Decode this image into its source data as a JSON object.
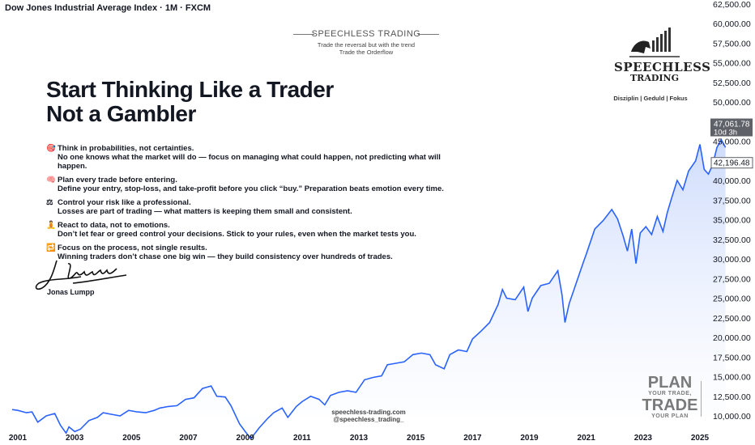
{
  "header": {
    "title": "Dow Jones Industrial Average Index · 1M · FXCM"
  },
  "brand_top": {
    "name": "SPEECHLESS TRADING",
    "tagline_1": "Trade the reversal but with the trend",
    "tagline_2": "Trade the Orderflow"
  },
  "headline": {
    "line1": "Start Thinking Like a Trader",
    "line2": "Not a Gambler"
  },
  "tips": [
    {
      "icon": "target-icon",
      "glyph": "🎯",
      "title": "Think in probabilities, not certainties.",
      "text": "No one knows what the market will do — focus on managing what could happen, not predicting what will happen."
    },
    {
      "icon": "brain-icon",
      "glyph": "🧠",
      "title": "Plan every trade before entering.",
      "text": "Define your entry, stop-loss, and take-profit before you click “buy.” Preparation beats emotion every time."
    },
    {
      "icon": "scales-icon",
      "glyph": "⚖",
      "title": "Control your risk like a professional.",
      "text": "Losses are part of trading — what matters is keeping them small and consistent."
    },
    {
      "icon": "meditation-icon",
      "glyph": "🧘",
      "title": "React to data, not to emotions.",
      "text": "Don’t let fear or greed control your decisions. Stick to your rules, even when the market tests you."
    },
    {
      "icon": "repeat-icon",
      "glyph": "🔁",
      "title": "Focus on the process, not single results.",
      "text": "Winning traders don’t chase one big win — they build consistency over hundreds of trades."
    }
  ],
  "signature": {
    "name": "Jonas Lumpp"
  },
  "logo": {
    "line1": "SPEECHLESS",
    "line2": "TRADING",
    "motto": "Disziplin | Geduld | Fokus"
  },
  "site": {
    "url": "speechless-trading.com",
    "handle": "@speechless_trading_"
  },
  "plan_badge": {
    "w1": "PLAN",
    "w2": "YOUR TRADE,",
    "w3": "TRADE",
    "w4": "YOUR PLAN"
  },
  "colors": {
    "line": "#2962ff",
    "fill_top": "#c9d8fb",
    "fill_bottom": "#ffffff",
    "price_tag": "#5f6169",
    "current_tag_border": "#5f6169"
  },
  "chart_data": {
    "type": "area",
    "ylim": [
      9500,
      62500
    ],
    "yticks": [
      "10,000.00",
      "12,500.00",
      "15,000.00",
      "17,500.00",
      "20,000.00",
      "22,500.00",
      "25,000.00",
      "27,500.00",
      "30,000.00",
      "32,500.00",
      "35,000.00",
      "37,500.00",
      "40,000.00",
      "42,500.00",
      "45,000.00",
      "47,500.00",
      "50,000.00",
      "52,500.00",
      "55,000.00",
      "57,500.00",
      "60,000.00",
      "62,500.00"
    ],
    "ytick_values": [
      10000,
      12500,
      15000,
      17500,
      20000,
      22500,
      25000,
      27500,
      30000,
      32500,
      35000,
      37500,
      40000,
      42500,
      45000,
      47500,
      50000,
      52500,
      55000,
      57500,
      60000,
      62500
    ],
    "xticks": [
      "2001",
      "2003",
      "2005",
      "2007",
      "2009",
      "2011",
      "2013",
      "2015",
      "2017",
      "2019",
      "2021",
      "2023",
      "2025"
    ],
    "xtick_values": [
      2001,
      2003,
      2005,
      2007,
      2009,
      2011,
      2013,
      2015,
      2017,
      2019,
      2021,
      2023,
      2025
    ],
    "xlim": [
      2000.75,
      2026.0
    ],
    "labels": {
      "last_price": "47,061.78",
      "countdown": "10d 3h",
      "current_price": "42,196.48"
    },
    "label_values": {
      "last_price": 47061.78,
      "current_price": 42196.48
    },
    "series": [
      {
        "x": [
          2000.8,
          2001.0,
          2001.3,
          2001.5,
          2001.7,
          2002.0,
          2002.3,
          2002.5,
          2002.7,
          2002.8,
          2003.0,
          2003.2,
          2003.5,
          2003.8,
          2004.0,
          2004.3,
          2004.6,
          2004.9,
          2005.2,
          2005.5,
          2005.8,
          2006.0,
          2006.3,
          2006.6,
          2006.9,
          2007.2,
          2007.5,
          2007.8,
          2008.0,
          2008.3,
          2008.5,
          2008.8,
          2009.0,
          2009.2,
          2009.5,
          2009.8,
          2010.0,
          2010.3,
          2010.5,
          2010.8,
          2011.0,
          2011.3,
          2011.6,
          2011.8,
          2012.0,
          2012.3,
          2012.6,
          2012.9,
          2013.2,
          2013.5,
          2013.8,
          2014.0,
          2014.3,
          2014.6,
          2014.9,
          2015.2,
          2015.5,
          2015.7,
          2016.0,
          2016.2,
          2016.5,
          2016.8,
          2017.0,
          2017.3,
          2017.6,
          2017.9,
          2018.05,
          2018.2,
          2018.5,
          2018.8,
          2018.95,
          2019.1,
          2019.4,
          2019.7,
          2020.0,
          2020.15,
          2020.25,
          2020.4,
          2020.6,
          2020.9,
          2021.0,
          2021.3,
          2021.6,
          2021.9,
          2022.1,
          2022.3,
          2022.45,
          2022.6,
          2022.75,
          2022.9,
          2023.1,
          2023.3,
          2023.5,
          2023.7,
          2023.85,
          2024.0,
          2024.2,
          2024.4,
          2024.6,
          2024.85,
          2025.0,
          2025.15,
          2025.3,
          2025.45,
          2025.6,
          2025.75,
          2025.9
        ],
        "y": [
          10800,
          10700,
          10400,
          10500,
          9200,
          10000,
          10300,
          8800,
          7800,
          8600,
          8000,
          8300,
          9400,
          9800,
          10400,
          10200,
          10000,
          10700,
          10500,
          10400,
          10700,
          11000,
          11200,
          11300,
          12100,
          12300,
          13500,
          13800,
          12500,
          12400,
          11300,
          9000,
          8000,
          7100,
          8500,
          9700,
          10400,
          11000,
          9800,
          11200,
          11800,
          12500,
          12100,
          11400,
          12600,
          13000,
          13200,
          13000,
          14600,
          14900,
          15100,
          16500,
          16700,
          16900,
          17800,
          18000,
          17800,
          16500,
          16000,
          17800,
          18400,
          18200,
          19800,
          20800,
          21900,
          24200,
          26100,
          25000,
          24800,
          26400,
          23300,
          25000,
          26600,
          26900,
          28500,
          25400,
          21900,
          24300,
          26400,
          29600,
          30600,
          33800,
          34900,
          36300,
          35100,
          32900,
          31000,
          33800,
          29400,
          33300,
          34100,
          33100,
          35400,
          33500,
          35900,
          37700,
          40000,
          38800,
          41200,
          42500,
          44600,
          41400,
          40800,
          42000,
          44200,
          45200,
          44200
        ]
      }
    ]
  }
}
